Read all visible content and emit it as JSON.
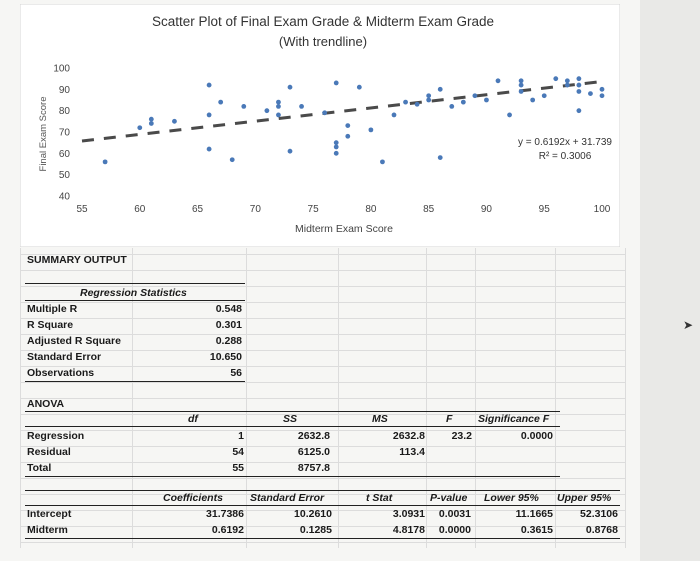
{
  "chart_data": {
    "type": "scatter",
    "title": "Scatter Plot of Final Exam Grade & Midterm Exam Grade",
    "subtitle": "(With trendline)",
    "xlabel": "Midterm Exam Score",
    "ylabel": "Final Exam Score",
    "xlim": [
      55,
      100
    ],
    "ylim": [
      40,
      100
    ],
    "xticks": [
      55,
      60,
      65,
      70,
      75,
      80,
      85,
      90,
      95,
      100
    ],
    "yticks": [
      40,
      50,
      60,
      70,
      80,
      90,
      100
    ],
    "grid": false,
    "point_color": "#4a79b8",
    "trend_color": "#4a4a4a",
    "points": [
      [
        57,
        56
      ],
      [
        60,
        72
      ],
      [
        61,
        74
      ],
      [
        61,
        76
      ],
      [
        63,
        75
      ],
      [
        66,
        92
      ],
      [
        66,
        62
      ],
      [
        66,
        78
      ],
      [
        67,
        84
      ],
      [
        68,
        57
      ],
      [
        69,
        82
      ],
      [
        71,
        80
      ],
      [
        72,
        78
      ],
      [
        72,
        82
      ],
      [
        72,
        84
      ],
      [
        73,
        91
      ],
      [
        73,
        61
      ],
      [
        74,
        82
      ],
      [
        77,
        93
      ],
      [
        77,
        65
      ],
      [
        77,
        63
      ],
      [
        77,
        60
      ],
      [
        78,
        68
      ],
      [
        78,
        73
      ],
      [
        79,
        91
      ],
      [
        80,
        71
      ],
      [
        81,
        56
      ],
      [
        82,
        78
      ],
      [
        83,
        84
      ],
      [
        84,
        83
      ],
      [
        85,
        87
      ],
      [
        85,
        85
      ],
      [
        86,
        90
      ],
      [
        86,
        58
      ],
      [
        88,
        84
      ],
      [
        89,
        87
      ],
      [
        91,
        94
      ],
      [
        92,
        78
      ],
      [
        93,
        94
      ],
      [
        93,
        92
      ],
      [
        93,
        89
      ],
      [
        94,
        85
      ],
      [
        96,
        95
      ],
      [
        97,
        94
      ],
      [
        97,
        92
      ],
      [
        98,
        95
      ],
      [
        98,
        92
      ],
      [
        98,
        89
      ],
      [
        98,
        80
      ],
      [
        99,
        88
      ],
      [
        100,
        90
      ],
      [
        100,
        87
      ],
      [
        90,
        85
      ],
      [
        95,
        87
      ],
      [
        87,
        82
      ],
      [
        76,
        79
      ]
    ],
    "trendline": {
      "slope": 0.6192,
      "intercept": 31.739,
      "x_from": 55,
      "x_to": 100
    },
    "equation_text": "y = 0.6192x + 31.739",
    "r2_text": "R² = 0.3006"
  },
  "summary": {
    "title": "SUMMARY OUTPUT",
    "regression_header": "Regression Statistics",
    "stats": [
      {
        "label": "Multiple R",
        "value": "0.548"
      },
      {
        "label": "R Square",
        "value": "0.301"
      },
      {
        "label": "Adjusted R Square",
        "value": "0.288"
      },
      {
        "label": "Standard Error",
        "value": "10.650"
      },
      {
        "label": "Observations",
        "value": "56"
      }
    ],
    "anova_title": "ANOVA",
    "anova_headers": {
      "df": "df",
      "ss": "SS",
      "ms": "MS",
      "f": "F",
      "sig": "Significance F"
    },
    "anova_rows": [
      {
        "label": "Regression",
        "df": "1",
        "ss": "2632.8",
        "ms": "2632.8",
        "f": "23.2",
        "sig": "0.0000"
      },
      {
        "label": "Residual",
        "df": "54",
        "ss": "6125.0",
        "ms": "113.4",
        "f": "",
        "sig": ""
      },
      {
        "label": "Total",
        "df": "55",
        "ss": "8757.8",
        "ms": "",
        "f": "",
        "sig": ""
      }
    ],
    "coef_headers": {
      "coef": "Coefficients",
      "se": "Standard Error",
      "t": "t Stat",
      "p": "P-value",
      "lo": "Lower 95%",
      "hi": "Upper 95%"
    },
    "coef_rows": [
      {
        "label": "Intercept",
        "coef": "31.7386",
        "se": "10.2610",
        "t": "3.0931",
        "p": "0.0031",
        "lo": "11.1665",
        "hi": "52.3106"
      },
      {
        "label": "Midterm",
        "coef": "0.6192",
        "se": "0.1285",
        "t": "4.8178",
        "p": "0.0000",
        "lo": "0.3615",
        "hi": "0.8768"
      }
    ]
  }
}
